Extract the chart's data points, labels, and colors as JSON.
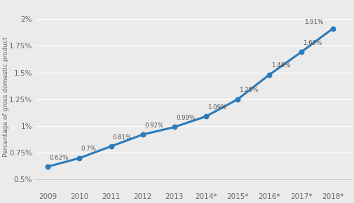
{
  "x_labels": [
    "2009",
    "2010",
    "2011",
    "2012",
    "2013",
    "2014*",
    "2015*",
    "2016*",
    "2017*",
    "2018*"
  ],
  "x_values": [
    0,
    1,
    2,
    3,
    4,
    5,
    6,
    7,
    8,
    9
  ],
  "y_values": [
    0.0062,
    0.007,
    0.0081,
    0.0092,
    0.0099,
    0.0109,
    0.0125,
    0.0148,
    0.0169,
    0.0191
  ],
  "y_labels_pct": [
    "0.62%",
    "0.7%",
    "0.81%",
    "0.92%",
    "0.99%",
    "1.09%",
    "1.25%",
    "1.48%",
    "1.69%",
    "1.91%"
  ],
  "line_color": "#2b7bba",
  "marker_color": "#2b7bba",
  "background_color": "#ebebeb",
  "grid_color": "#ffffff",
  "ylabel": "Percentage of gross domestic product",
  "ytick_labels": [
    "0.5%",
    "0.75%",
    "1%",
    "1.25%",
    "1.5%",
    "1.75%",
    "2%"
  ],
  "ytick_values": [
    0.005,
    0.0075,
    0.01,
    0.0125,
    0.015,
    0.0175,
    0.02
  ],
  "ylim": [
    0.004,
    0.0215
  ],
  "xlim": [
    -0.4,
    9.6
  ]
}
